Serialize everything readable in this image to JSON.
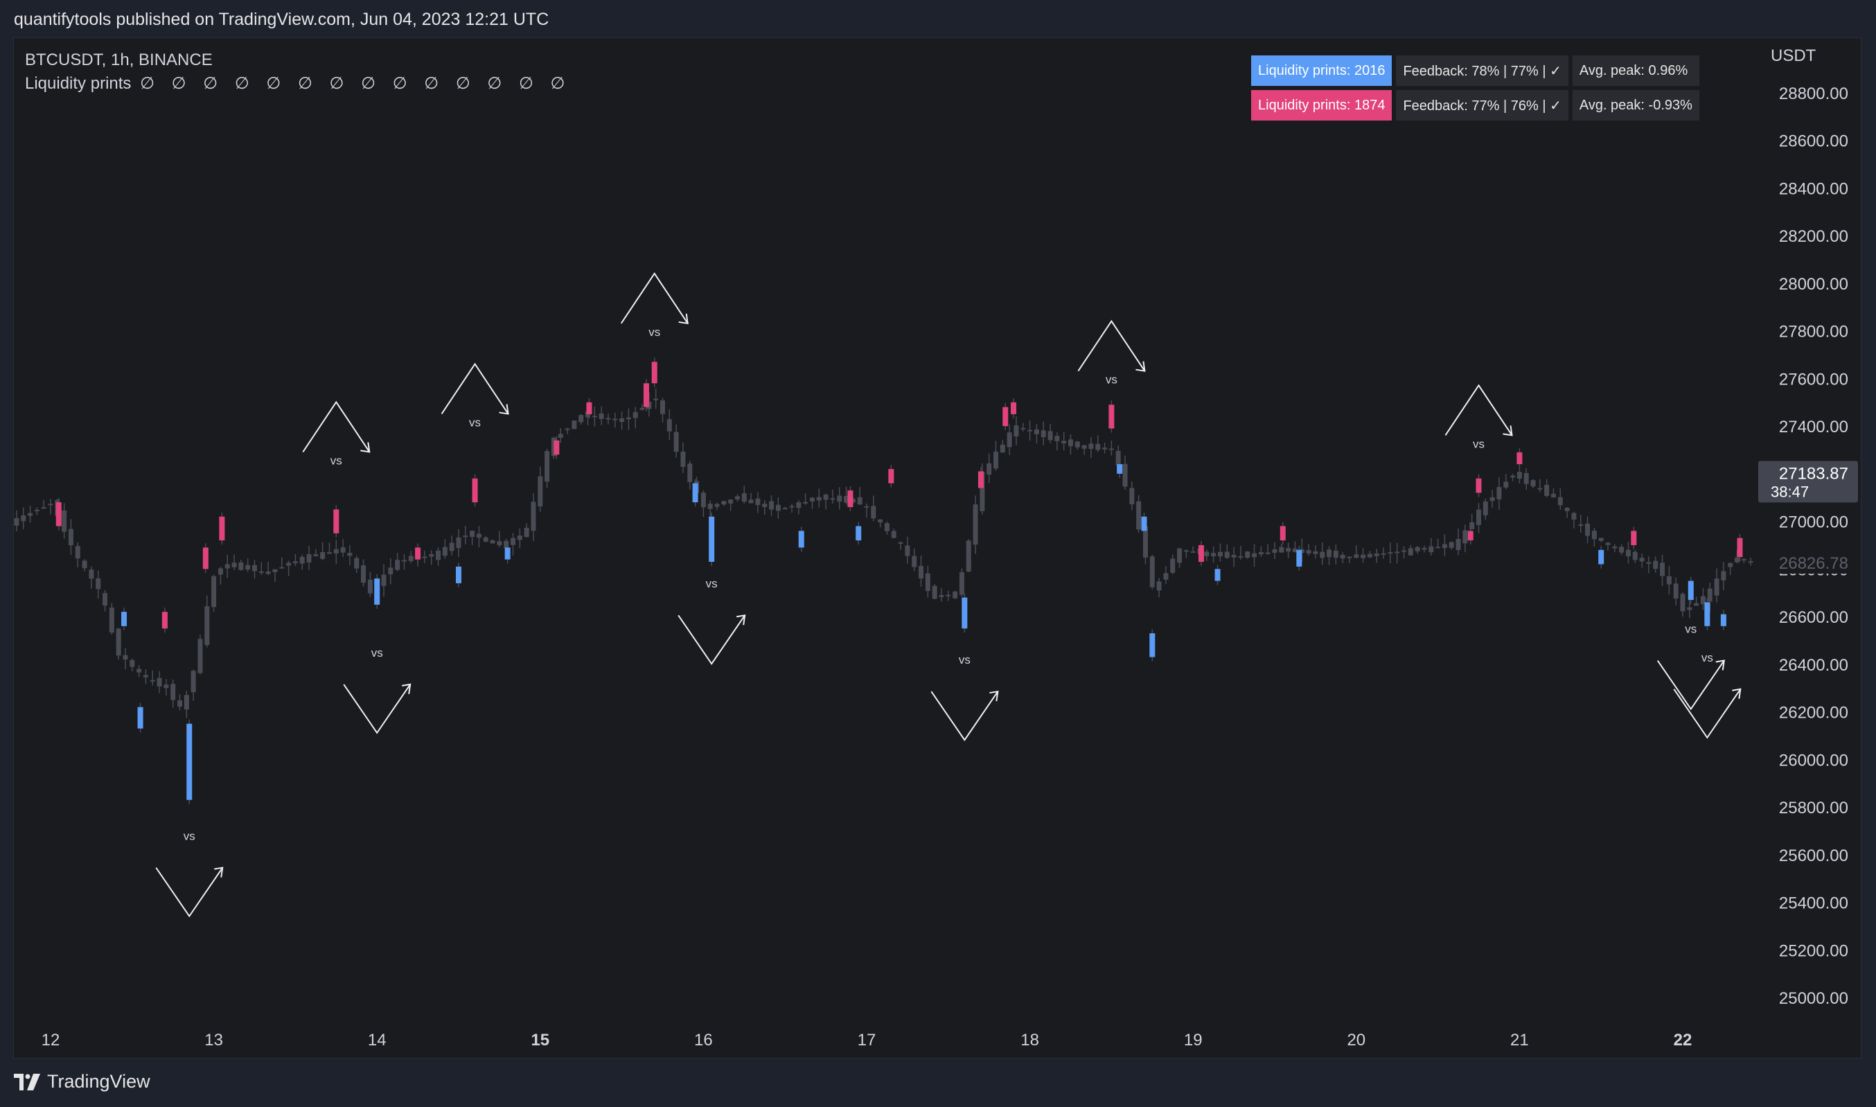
{
  "header": {
    "publish_info": "quantifytools published on TradingView.com, Jun 04, 2023 12:21 UTC"
  },
  "legend": {
    "symbol_line": "BTCUSDT, 1h, BINANCE",
    "indicator_name": "Liquidity prints",
    "indicator_values": "∅ ∅ ∅ ∅ ∅ ∅ ∅ ∅ ∅ ∅ ∅ ∅ ∅ ∅"
  },
  "stats": {
    "row1": {
      "prints": "Liquidity prints: 2016",
      "feedback": "Feedback: 78% | 77% | ✓",
      "peak": "Avg. peak: 0.96%"
    },
    "row2": {
      "prints": "Liquidity prints: 1874",
      "feedback": "Feedback: 77% | 76% | ✓",
      "peak": "Avg. peak: -0.93%"
    }
  },
  "footer": {
    "brand": "TradingView"
  },
  "colors": {
    "background": "#1a1b1f",
    "candle_neutral": "#4a4c55",
    "liquidity_up": "#5b9cf6",
    "liquidity_down": "#e2437b",
    "axis_text": "#d1d4dc"
  },
  "chart_data": {
    "type": "candlestick",
    "symbol": "BTCUSDT",
    "timeframe": "1h",
    "exchange": "BINANCE",
    "currency": "USDT",
    "y_ticks": [
      28800,
      28600,
      28400,
      28200,
      28000,
      27800,
      27600,
      27400,
      27200,
      27000,
      26800,
      26600,
      26400,
      26200,
      26000,
      25800,
      25600,
      25400,
      25200,
      25000
    ],
    "y_tick_labels": [
      "28800.00",
      "28600.00",
      "28400.00",
      "28200.00",
      "28000.00",
      "27800.00",
      "27600.00",
      "27400.00",
      "27200.00",
      "27000.00",
      "26800.00",
      "26600.00",
      "26400.00",
      "26200.00",
      "26000.00",
      "25800.00",
      "25600.00",
      "25400.00",
      "25200.00",
      "25000.00"
    ],
    "x_ticks": [
      {
        "day": 12,
        "label": "12",
        "bold": false
      },
      {
        "day": 13,
        "label": "13",
        "bold": false
      },
      {
        "day": 14,
        "label": "14",
        "bold": false
      },
      {
        "day": 15,
        "label": "15",
        "bold": true
      },
      {
        "day": 16,
        "label": "16",
        "bold": false
      },
      {
        "day": 17,
        "label": "17",
        "bold": false
      },
      {
        "day": 18,
        "label": "18",
        "bold": false
      },
      {
        "day": 19,
        "label": "19",
        "bold": false
      },
      {
        "day": 20,
        "label": "20",
        "bold": false
      },
      {
        "day": 21,
        "label": "21",
        "bold": false
      },
      {
        "day": 22,
        "label": "22",
        "bold": true
      }
    ],
    "last_price": {
      "value": "27183.87",
      "countdown": "38:47"
    },
    "ghost_price": {
      "value": "26826.78"
    },
    "price_path": [
      [
        11.75,
        26980
      ],
      [
        12.05,
        27080
      ],
      [
        12.2,
        26850
      ],
      [
        12.35,
        26700
      ],
      [
        12.45,
        26450
      ],
      [
        12.6,
        26350
      ],
      [
        12.75,
        26300
      ],
      [
        12.85,
        26200
      ],
      [
        12.95,
        26470
      ],
      [
        13.05,
        26800
      ],
      [
        13.2,
        26820
      ],
      [
        13.35,
        26780
      ],
      [
        13.6,
        26850
      ],
      [
        13.85,
        26880
      ],
      [
        14.0,
        26700
      ],
      [
        14.15,
        26830
      ],
      [
        14.4,
        26860
      ],
      [
        14.6,
        26950
      ],
      [
        14.8,
        26900
      ],
      [
        14.95,
        26950
      ],
      [
        15.1,
        27330
      ],
      [
        15.3,
        27450
      ],
      [
        15.55,
        27420
      ],
      [
        15.75,
        27520
      ],
      [
        15.9,
        27250
      ],
      [
        16.05,
        27050
      ],
      [
        16.25,
        27100
      ],
      [
        16.5,
        27050
      ],
      [
        16.75,
        27100
      ],
      [
        17.0,
        27080
      ],
      [
        17.25,
        26900
      ],
      [
        17.45,
        26680
      ],
      [
        17.6,
        26700
      ],
      [
        17.75,
        27200
      ],
      [
        17.95,
        27400
      ],
      [
        18.3,
        27320
      ],
      [
        18.55,
        27300
      ],
      [
        18.7,
        27000
      ],
      [
        18.8,
        26700
      ],
      [
        18.95,
        26880
      ],
      [
        19.3,
        26850
      ],
      [
        19.6,
        26880
      ],
      [
        20.0,
        26850
      ],
      [
        20.4,
        26880
      ],
      [
        20.65,
        26900
      ],
      [
        20.8,
        27050
      ],
      [
        21.0,
        27200
      ],
      [
        21.25,
        27100
      ],
      [
        21.45,
        26950
      ],
      [
        21.7,
        26860
      ],
      [
        21.9,
        26800
      ],
      [
        22.05,
        26620
      ],
      [
        22.2,
        26700
      ],
      [
        22.35,
        26850
      ],
      [
        22.45,
        26830
      ]
    ],
    "liquidity_prints": [
      {
        "day": 12.05,
        "type": "down",
        "open": 26980,
        "close": 27080
      },
      {
        "day": 12.45,
        "type": "up",
        "open": 26620,
        "close": 26560
      },
      {
        "day": 12.55,
        "type": "up",
        "open": 26220,
        "close": 26130
      },
      {
        "day": 12.7,
        "type": "down",
        "open": 26550,
        "close": 26620
      },
      {
        "day": 12.85,
        "type": "up",
        "open": 26150,
        "close": 25830
      },
      {
        "day": 12.95,
        "type": "down",
        "open": 26800,
        "close": 26890
      },
      {
        "day": 13.05,
        "type": "down",
        "open": 26920,
        "close": 27020
      },
      {
        "day": 13.75,
        "type": "down",
        "open": 26950,
        "close": 27050
      },
      {
        "day": 14.0,
        "type": "up",
        "open": 26760,
        "close": 26650
      },
      {
        "day": 14.25,
        "type": "down",
        "open": 26840,
        "close": 26890
      },
      {
        "day": 14.5,
        "type": "up",
        "open": 26810,
        "close": 26740
      },
      {
        "day": 14.6,
        "type": "down",
        "open": 27080,
        "close": 27180
      },
      {
        "day": 14.8,
        "type": "up",
        "open": 26890,
        "close": 26840
      },
      {
        "day": 15.1,
        "type": "down",
        "open": 27280,
        "close": 27340
      },
      {
        "day": 15.3,
        "type": "down",
        "open": 27450,
        "close": 27500
      },
      {
        "day": 15.65,
        "type": "down",
        "open": 27480,
        "close": 27580
      },
      {
        "day": 15.7,
        "type": "down",
        "open": 27580,
        "close": 27670
      },
      {
        "day": 15.95,
        "type": "up",
        "open": 27160,
        "close": 27080
      },
      {
        "day": 16.05,
        "type": "up",
        "open": 27020,
        "close": 26830
      },
      {
        "day": 16.6,
        "type": "up",
        "open": 26960,
        "close": 26890
      },
      {
        "day": 16.9,
        "type": "down",
        "open": 27060,
        "close": 27130
      },
      {
        "day": 16.95,
        "type": "up",
        "open": 26980,
        "close": 26920
      },
      {
        "day": 17.15,
        "type": "down",
        "open": 27160,
        "close": 27220
      },
      {
        "day": 17.6,
        "type": "up",
        "open": 26680,
        "close": 26550
      },
      {
        "day": 17.7,
        "type": "down",
        "open": 27140,
        "close": 27210
      },
      {
        "day": 17.85,
        "type": "down",
        "open": 27400,
        "close": 27480
      },
      {
        "day": 17.9,
        "type": "down",
        "open": 27450,
        "close": 27500
      },
      {
        "day": 18.5,
        "type": "down",
        "open": 27390,
        "close": 27490
      },
      {
        "day": 18.55,
        "type": "up",
        "open": 27240,
        "close": 27200
      },
      {
        "day": 18.7,
        "type": "up",
        "open": 27020,
        "close": 26960
      },
      {
        "day": 18.75,
        "type": "up",
        "open": 26530,
        "close": 26430
      },
      {
        "day": 19.05,
        "type": "down",
        "open": 26830,
        "close": 26900
      },
      {
        "day": 19.15,
        "type": "up",
        "open": 26800,
        "close": 26750
      },
      {
        "day": 19.55,
        "type": "down",
        "open": 26920,
        "close": 26980
      },
      {
        "day": 19.65,
        "type": "up",
        "open": 26880,
        "close": 26810
      },
      {
        "day": 20.7,
        "type": "down",
        "open": 26920,
        "close": 26960
      },
      {
        "day": 20.75,
        "type": "down",
        "open": 27120,
        "close": 27180
      },
      {
        "day": 21.0,
        "type": "down",
        "open": 27240,
        "close": 27290
      },
      {
        "day": 21.5,
        "type": "up",
        "open": 26880,
        "close": 26820
      },
      {
        "day": 21.7,
        "type": "down",
        "open": 26900,
        "close": 26960
      },
      {
        "day": 22.05,
        "type": "up",
        "open": 26750,
        "close": 26670
      },
      {
        "day": 22.15,
        "type": "up",
        "open": 26660,
        "close": 26560
      },
      {
        "day": 22.25,
        "type": "up",
        "open": 26610,
        "close": 26560
      },
      {
        "day": 22.35,
        "type": "down",
        "open": 26850,
        "close": 26930
      }
    ],
    "vs_markers": [
      {
        "day": 12.85,
        "price": 25720,
        "dir": "down"
      },
      {
        "day": 13.75,
        "price": 27210,
        "dir": "up"
      },
      {
        "day": 14.0,
        "price": 26490,
        "dir": "down"
      },
      {
        "day": 14.6,
        "price": 27370,
        "dir": "up"
      },
      {
        "day": 15.7,
        "price": 27750,
        "dir": "up"
      },
      {
        "day": 16.05,
        "price": 26780,
        "dir": "down"
      },
      {
        "day": 17.6,
        "price": 26460,
        "dir": "down"
      },
      {
        "day": 18.5,
        "price": 27550,
        "dir": "up"
      },
      {
        "day": 20.75,
        "price": 27280,
        "dir": "up"
      },
      {
        "day": 22.05,
        "price": 26590,
        "dir": "down"
      },
      {
        "day": 22.15,
        "price": 26470,
        "dir": "down"
      }
    ],
    "vs_label": "vs"
  }
}
